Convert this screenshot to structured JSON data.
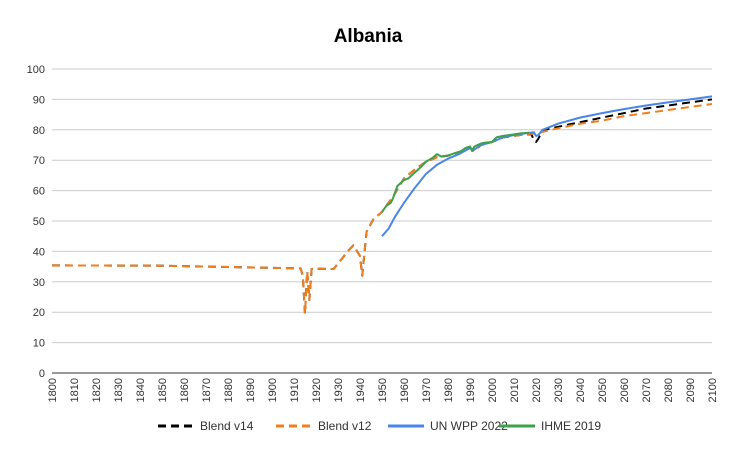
{
  "chart_data": {
    "type": "line",
    "title": "Albania",
    "xlabel": "",
    "ylabel": "",
    "xlim": [
      1800,
      2100
    ],
    "ylim": [
      0,
      100
    ],
    "x_ticks": [
      1800,
      1810,
      1820,
      1830,
      1840,
      1850,
      1860,
      1870,
      1880,
      1890,
      1900,
      1910,
      1920,
      1930,
      1940,
      1950,
      1960,
      1970,
      1980,
      1990,
      2000,
      2010,
      2020,
      2030,
      2040,
      2050,
      2060,
      2070,
      2080,
      2090,
      2100
    ],
    "y_ticks": [
      0,
      10,
      20,
      30,
      40,
      50,
      60,
      70,
      80,
      90,
      100
    ],
    "grid": "horizontal",
    "legend_position": "bottom",
    "series": [
      {
        "name": "Blend v14",
        "color": "#000000",
        "dash": true,
        "points": [
          [
            1800,
            35.4
          ],
          [
            1850,
            35.3
          ],
          [
            1900,
            34.6
          ],
          [
            1913,
            34.4
          ],
          [
            1914,
            32.0
          ],
          [
            1915,
            19.5
          ],
          [
            1916,
            33.5
          ],
          [
            1917,
            24.0
          ],
          [
            1918,
            34.2
          ],
          [
            1920,
            34.3
          ],
          [
            1928,
            34.2
          ],
          [
            1935,
            40.5
          ],
          [
            1937,
            42.0
          ],
          [
            1940,
            38.5
          ],
          [
            1941,
            32.0
          ],
          [
            1943,
            46.5
          ],
          [
            1946,
            50.5
          ],
          [
            1950,
            53.0
          ],
          [
            1955,
            58.0
          ],
          [
            1960,
            64.0
          ],
          [
            1965,
            67.0
          ],
          [
            1970,
            69.5
          ],
          [
            1975,
            71.0
          ],
          [
            1980,
            71.5
          ],
          [
            1985,
            72.5
          ],
          [
            1990,
            74.0
          ],
          [
            1992,
            73.0
          ],
          [
            1995,
            75.0
          ],
          [
            2000,
            76.0
          ],
          [
            2005,
            77.5
          ],
          [
            2010,
            78.0
          ],
          [
            2015,
            78.5
          ],
          [
            2018,
            78.5
          ],
          [
            2019,
            76.5
          ],
          [
            2020,
            76.0
          ],
          [
            2021,
            77.0
          ],
          [
            2023,
            79.8
          ],
          [
            2030,
            81.0
          ],
          [
            2040,
            82.5
          ],
          [
            2050,
            84.0
          ],
          [
            2060,
            85.5
          ],
          [
            2070,
            87.0
          ],
          [
            2080,
            88.0
          ],
          [
            2090,
            89.0
          ],
          [
            2100,
            90.0
          ]
        ]
      },
      {
        "name": "Blend v12",
        "color": "#f07f20",
        "dash": true,
        "points": [
          [
            1800,
            35.4
          ],
          [
            1850,
            35.3
          ],
          [
            1900,
            34.6
          ],
          [
            1913,
            34.4
          ],
          [
            1914,
            32.0
          ],
          [
            1915,
            19.5
          ],
          [
            1916,
            33.5
          ],
          [
            1917,
            24.0
          ],
          [
            1918,
            34.2
          ],
          [
            1920,
            34.3
          ],
          [
            1928,
            34.2
          ],
          [
            1935,
            40.5
          ],
          [
            1937,
            42.0
          ],
          [
            1940,
            38.5
          ],
          [
            1941,
            32.0
          ],
          [
            1943,
            46.5
          ],
          [
            1946,
            50.5
          ],
          [
            1950,
            53.0
          ],
          [
            1955,
            58.0
          ],
          [
            1960,
            64.0
          ],
          [
            1965,
            67.0
          ],
          [
            1970,
            69.5
          ],
          [
            1975,
            71.0
          ],
          [
            1980,
            71.5
          ],
          [
            1985,
            72.5
          ],
          [
            1990,
            74.0
          ],
          [
            1992,
            73.0
          ],
          [
            1995,
            75.0
          ],
          [
            2000,
            76.0
          ],
          [
            2005,
            77.5
          ],
          [
            2010,
            78.0
          ],
          [
            2015,
            78.5
          ],
          [
            2020,
            78.8
          ],
          [
            2030,
            80.5
          ],
          [
            2040,
            82.0
          ],
          [
            2050,
            83.0
          ],
          [
            2060,
            84.5
          ],
          [
            2070,
            85.5
          ],
          [
            2080,
            86.5
          ],
          [
            2090,
            87.5
          ],
          [
            2100,
            88.5
          ]
        ]
      },
      {
        "name": "UN WPP 2022",
        "color": "#4a86e8",
        "dash": false,
        "points": [
          [
            1950,
            45.0
          ],
          [
            1953,
            47.5
          ],
          [
            1956,
            51.5
          ],
          [
            1960,
            56.0
          ],
          [
            1965,
            61.0
          ],
          [
            1970,
            65.5
          ],
          [
            1975,
            68.5
          ],
          [
            1980,
            70.5
          ],
          [
            1985,
            72.0
          ],
          [
            1990,
            74.0
          ],
          [
            1992,
            73.5
          ],
          [
            1995,
            75.0
          ],
          [
            2000,
            76.0
          ],
          [
            2005,
            77.5
          ],
          [
            2010,
            78.3
          ],
          [
            2015,
            78.8
          ],
          [
            2019,
            79.2
          ],
          [
            2020,
            78.0
          ],
          [
            2021,
            78.2
          ],
          [
            2023,
            80.0
          ],
          [
            2030,
            82.0
          ],
          [
            2040,
            84.0
          ],
          [
            2050,
            85.5
          ],
          [
            2060,
            86.8
          ],
          [
            2070,
            88.0
          ],
          [
            2080,
            89.0
          ],
          [
            2090,
            90.0
          ],
          [
            2100,
            91.0
          ]
        ]
      },
      {
        "name": "IHME 2019",
        "color": "#3da04a",
        "dash": false,
        "points": [
          [
            1950,
            53.0
          ],
          [
            1952,
            55.0
          ],
          [
            1954,
            56.0
          ],
          [
            1955,
            57.5
          ],
          [
            1957,
            61.5
          ],
          [
            1960,
            63.5
          ],
          [
            1962,
            64.0
          ],
          [
            1965,
            66.0
          ],
          [
            1968,
            68.0
          ],
          [
            1970,
            69.5
          ],
          [
            1973,
            70.8
          ],
          [
            1975,
            72.0
          ],
          [
            1977,
            71.2
          ],
          [
            1980,
            71.5
          ],
          [
            1983,
            72.3
          ],
          [
            1986,
            73.0
          ],
          [
            1988,
            74.0
          ],
          [
            1990,
            74.5
          ],
          [
            1991,
            73.0
          ],
          [
            1992,
            74.5
          ],
          [
            1995,
            75.5
          ],
          [
            1997,
            75.8
          ],
          [
            2000,
            76.0
          ],
          [
            2002,
            77.5
          ],
          [
            2005,
            78.0
          ],
          [
            2008,
            78.3
          ],
          [
            2010,
            78.5
          ],
          [
            2013,
            78.8
          ],
          [
            2017,
            79.0
          ]
        ]
      }
    ]
  }
}
